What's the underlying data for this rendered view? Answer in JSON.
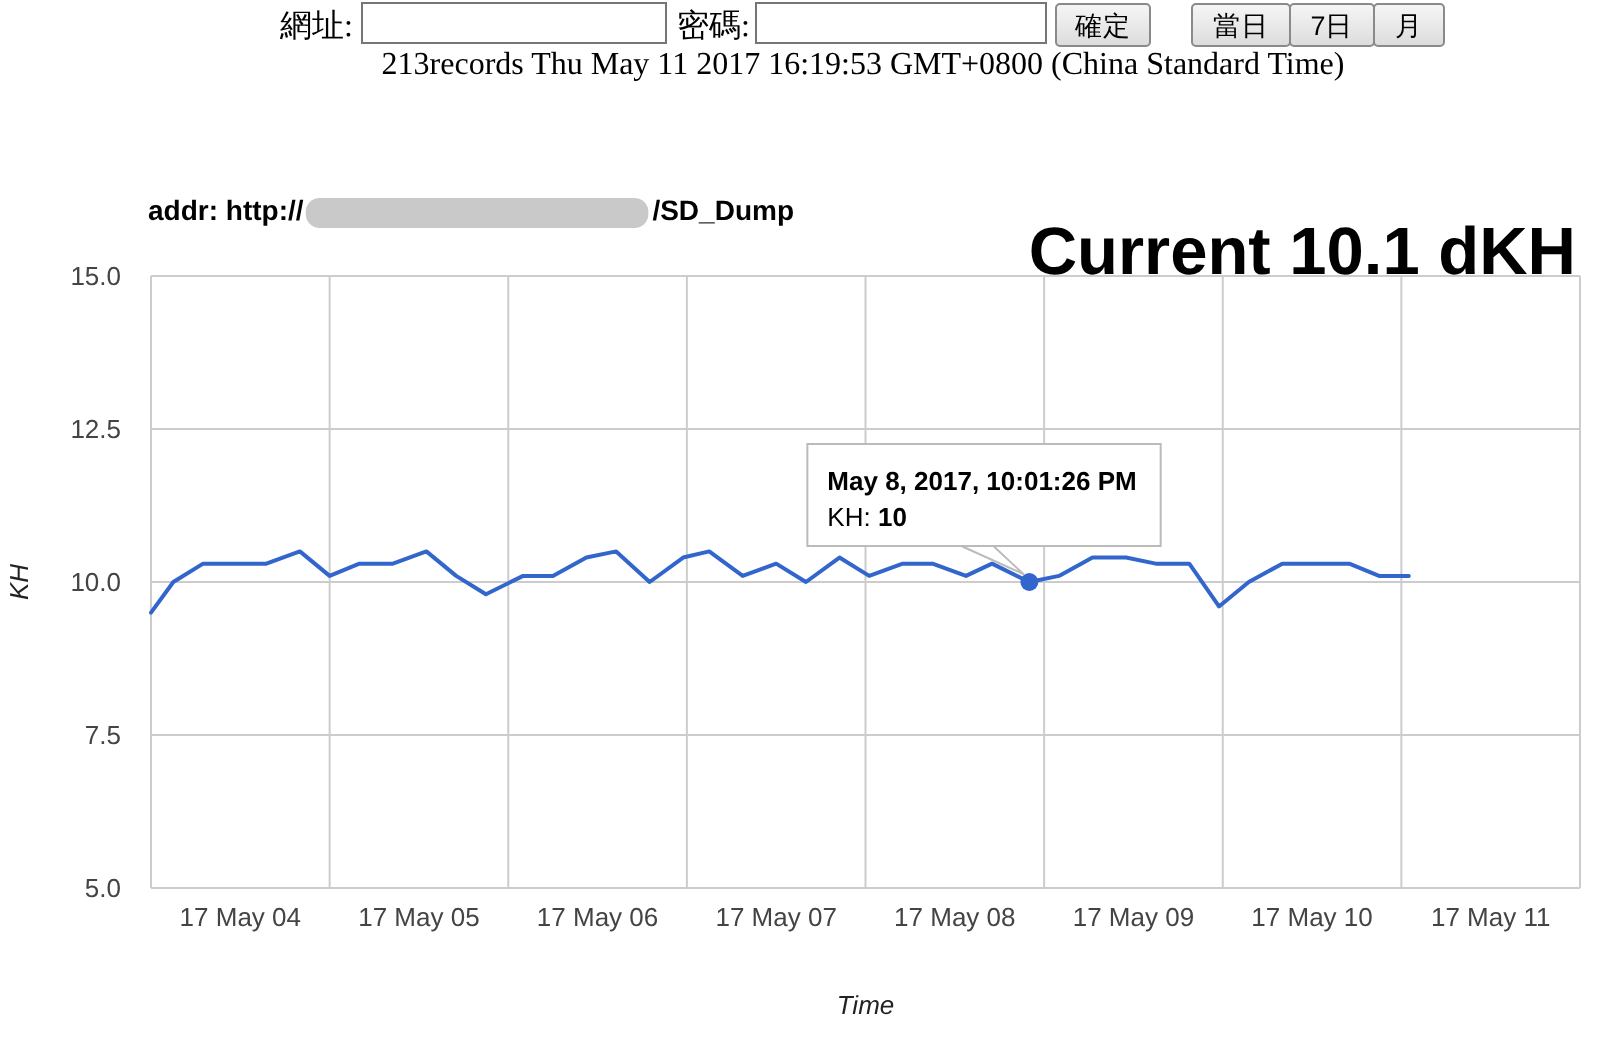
{
  "chart_data": {
    "type": "line",
    "title": "Current 10.1 dKH",
    "xlabel": "Time",
    "ylabel": "KH",
    "series": [
      {
        "color": "#3366cc",
        "x": [
          "2017-05-04T00:00",
          "2017-05-04T03:00",
          "2017-05-04T07:00",
          "2017-05-04T11:00",
          "2017-05-04T15:30",
          "2017-05-04T20:00",
          "2017-05-05T00:00",
          "2017-05-05T04:00",
          "2017-05-05T08:30",
          "2017-05-05T13:00",
          "2017-05-05T17:00",
          "2017-05-05T21:00",
          "2017-05-06T02:00",
          "2017-05-06T06:00",
          "2017-05-06T10:30",
          "2017-05-06T14:30",
          "2017-05-06T19:00",
          "2017-05-06T23:30",
          "2017-05-07T03:00",
          "2017-05-07T07:30",
          "2017-05-07T12:00",
          "2017-05-07T16:00",
          "2017-05-07T20:30",
          "2017-05-08T00:30",
          "2017-05-08T05:00",
          "2017-05-08T09:00",
          "2017-05-08T13:30",
          "2017-05-08T17:00",
          "2017-05-08T22:01",
          "2017-05-09T02:00",
          "2017-05-09T06:30",
          "2017-05-09T11:00",
          "2017-05-09T15:00",
          "2017-05-09T19:30",
          "2017-05-09T23:30",
          "2017-05-10T03:30",
          "2017-05-10T08:00",
          "2017-05-10T12:30",
          "2017-05-10T17:00",
          "2017-05-10T21:00",
          "2017-05-11T01:00"
        ],
        "values": [
          9.5,
          10.0,
          10.3,
          10.3,
          10.3,
          10.5,
          10.1,
          10.3,
          10.3,
          10.5,
          10.1,
          9.8,
          10.1,
          10.1,
          10.4,
          10.5,
          10.0,
          10.4,
          10.5,
          10.1,
          10.3,
          10.0,
          10.4,
          10.1,
          10.3,
          10.3,
          10.1,
          10.3,
          10.0,
          10.1,
          10.4,
          10.4,
          10.3,
          10.3,
          9.6,
          10.0,
          10.3,
          10.3,
          10.3,
          10.1,
          10.1
        ]
      },
      {
        "type": "scatter",
        "color": "#3366cc",
        "marker": "circle",
        "x": [
          "2017-05-08T22:01"
        ],
        "values": [
          10
        ]
      }
    ],
    "xlim": [
      "2017-05-04T00:00",
      "2017-05-12T00:00"
    ],
    "xticks": [
      {
        "value": "2017-05-04T00:00",
        "label": null
      },
      {
        "value": "2017-05-04T12:00",
        "label": "17 May 04"
      },
      {
        "value": "2017-05-05T00:00",
        "label": null
      },
      {
        "value": "2017-05-05T12:00",
        "label": "17 May 05"
      },
      {
        "value": "2017-05-06T00:00",
        "label": null
      },
      {
        "value": "2017-05-06T12:00",
        "label": "17 May 06"
      },
      {
        "value": "2017-05-07T00:00",
        "label": null
      },
      {
        "value": "2017-05-07T12:00",
        "label": "17 May 07"
      },
      {
        "value": "2017-05-08T00:00",
        "label": null
      },
      {
        "value": "2017-05-08T12:00",
        "label": "17 May 08"
      },
      {
        "value": "2017-05-09T00:00",
        "label": null
      },
      {
        "value": "2017-05-09T12:00",
        "label": "17 May 09"
      },
      {
        "value": "2017-05-10T00:00",
        "label": null
      },
      {
        "value": "2017-05-10T12:00",
        "label": "17 May 10"
      },
      {
        "value": "2017-05-11T00:00",
        "label": null
      },
      {
        "value": "2017-05-11T12:00",
        "label": "17 May 11"
      },
      {
        "value": "2017-05-12T00:00",
        "label": null
      }
    ],
    "ylim": [
      5,
      15
    ],
    "yticks": [
      {
        "value": 5,
        "label": "5.0"
      },
      {
        "value": 7.5,
        "label": "7.5"
      },
      {
        "value": 10,
        "label": "10.0"
      },
      {
        "value": 12.5,
        "label": "12.5"
      },
      {
        "value": 15,
        "label": "15.0"
      }
    ],
    "grid": true,
    "annotations": [
      "網址:",
      "密碼:",
      "確定",
      "當日",
      "7日",
      "月",
      "213records Thu May 11 2017 16:19:53 GMT+0800 (China Standard Time)",
      "addr: http://",
      "/SD_Dump",
      "May 8, 2017, 10:01:26 PM",
      "KH: **10**"
    ]
  }
}
